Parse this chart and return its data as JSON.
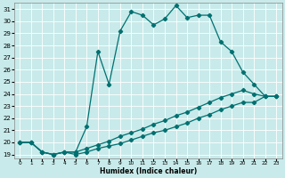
{
  "xlabel": "Humidex (Indice chaleur)",
  "bg_color": "#c8eaea",
  "line_color": "#007070",
  "grid_color": "#ffffff",
  "xlim": [
    -0.5,
    23.5
  ],
  "ylim": [
    18.7,
    31.5
  ],
  "xticks": [
    0,
    1,
    2,
    3,
    4,
    5,
    6,
    7,
    8,
    9,
    10,
    11,
    12,
    13,
    14,
    15,
    16,
    17,
    18,
    19,
    20,
    21,
    22,
    23
  ],
  "yticks": [
    19,
    20,
    21,
    22,
    23,
    24,
    25,
    26,
    27,
    28,
    29,
    30,
    31
  ],
  "line1_x": [
    0,
    1,
    2,
    3,
    4,
    5,
    6,
    7,
    8,
    9,
    10,
    11,
    12,
    13,
    14,
    15,
    16,
    17,
    18,
    19,
    20,
    21,
    22,
    23
  ],
  "line1_y": [
    20.0,
    20.0,
    19.2,
    19.0,
    19.2,
    19.2,
    21.3,
    27.5,
    24.8,
    29.2,
    30.8,
    30.5,
    29.7,
    30.2,
    31.3,
    30.3,
    30.5,
    30.5,
    28.3,
    27.5,
    25.8,
    24.8,
    23.8,
    23.8
  ],
  "line2_x": [
    0,
    1,
    2,
    3,
    4,
    5,
    6,
    7,
    8,
    9,
    10,
    11,
    12,
    13,
    14,
    15,
    16,
    17,
    18,
    19,
    20,
    21,
    22,
    23
  ],
  "line2_y": [
    20.0,
    20.0,
    19.2,
    19.0,
    19.2,
    19.2,
    19.5,
    19.8,
    20.1,
    20.5,
    20.8,
    21.1,
    21.5,
    21.8,
    22.2,
    22.5,
    22.9,
    23.3,
    23.7,
    24.0,
    24.3,
    24.0,
    23.8,
    23.8
  ],
  "line3_x": [
    0,
    1,
    2,
    3,
    4,
    5,
    6,
    7,
    8,
    9,
    10,
    11,
    12,
    13,
    14,
    15,
    16,
    17,
    18,
    19,
    20,
    21,
    22,
    23
  ],
  "line3_y": [
    20.0,
    20.0,
    19.2,
    19.0,
    19.2,
    19.0,
    19.2,
    19.5,
    19.7,
    19.9,
    20.2,
    20.5,
    20.8,
    21.0,
    21.3,
    21.6,
    22.0,
    22.3,
    22.7,
    23.0,
    23.3,
    23.3,
    23.8,
    23.8
  ]
}
